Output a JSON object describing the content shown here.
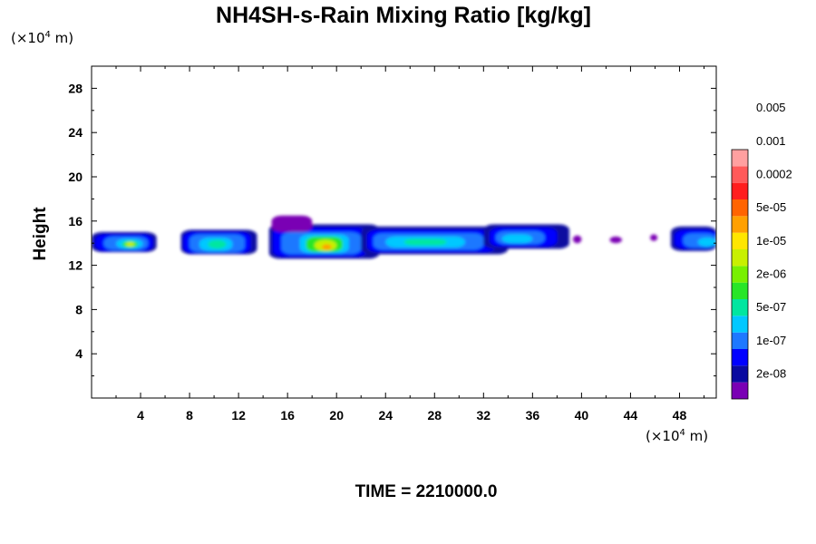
{
  "title": "NH4SH-s-Rain Mixing Ratio [kg/kg]",
  "time_label": "TIME = 2210000.0",
  "y_unit": {
    "prefix": "(×10",
    "exp": "4",
    "suffix": " m)"
  },
  "x_unit": {
    "prefix": "(×10",
    "exp": "4",
    "suffix": " m)"
  },
  "chart_data": {
    "type": "heatmap",
    "title": "NH4SH-s-Rain Mixing Ratio [kg/kg]",
    "xlabel": "",
    "ylabel": "Height",
    "x_unit": "×10^4 m",
    "y_unit": "×10^4 m",
    "xlim": [
      0,
      51
    ],
    "ylim": [
      0,
      30
    ],
    "x_ticks": [
      4,
      8,
      12,
      16,
      20,
      24,
      28,
      32,
      36,
      40,
      44,
      48
    ],
    "y_ticks": [
      4,
      8,
      12,
      16,
      20,
      24,
      28
    ],
    "grid": false,
    "colorbar": {
      "placement": "right",
      "levels": [
        "2e-08",
        "1e-07",
        "5e-07",
        "2e-06",
        "1e-05",
        "5e-05",
        "0.0002",
        "0.001",
        "0.005"
      ],
      "colors": [
        "#7a00b4",
        "#0a0aa0",
        "#0000ff",
        "#1e78ff",
        "#00c8ff",
        "#00e6a0",
        "#28e628",
        "#78f000",
        "#c8f000",
        "#ffe600",
        "#ffa000",
        "#ff6400",
        "#ff1e1e",
        "#ff5a5a",
        "#ffa0a0"
      ]
    },
    "cells": [
      {
        "x": [
          0,
          5.3
        ],
        "y": [
          13.2,
          15.0
        ],
        "level": 1
      },
      {
        "x": [
          0.3,
          5.0
        ],
        "y": [
          13.3,
          14.8
        ],
        "level": 2
      },
      {
        "x": [
          1.0,
          4.6
        ],
        "y": [
          13.4,
          14.6
        ],
        "level": 3
      },
      {
        "x": [
          2.0,
          4.2
        ],
        "y": [
          13.5,
          14.4
        ],
        "level": 4
      },
      {
        "x": [
          2.5,
          3.8
        ],
        "y": [
          13.6,
          14.2
        ],
        "level": 6
      },
      {
        "x": [
          2.8,
          3.5
        ],
        "y": [
          13.7,
          14.1
        ],
        "level": 8
      },
      {
        "x": [
          7.3,
          13.5
        ],
        "y": [
          13.0,
          15.2
        ],
        "level": 1
      },
      {
        "x": [
          7.5,
          13.0
        ],
        "y": [
          13.1,
          15.0
        ],
        "level": 2
      },
      {
        "x": [
          8.0,
          12.5
        ],
        "y": [
          13.2,
          14.8
        ],
        "level": 3
      },
      {
        "x": [
          8.8,
          11.5
        ],
        "y": [
          13.3,
          14.5
        ],
        "level": 4
      },
      {
        "x": [
          9.5,
          11.0
        ],
        "y": [
          13.5,
          14.3
        ],
        "level": 5
      },
      {
        "x": [
          14.5,
          23.5
        ],
        "y": [
          12.6,
          15.7
        ],
        "level": 1
      },
      {
        "x": [
          14.8,
          22.5
        ],
        "y": [
          12.8,
          15.4
        ],
        "level": 2
      },
      {
        "x": [
          15.5,
          22.0
        ],
        "y": [
          13.0,
          15.0
        ],
        "level": 3
      },
      {
        "x": [
          17.0,
          21.0
        ],
        "y": [
          13.1,
          14.8
        ],
        "level": 4
      },
      {
        "x": [
          17.5,
          20.5
        ],
        "y": [
          13.2,
          14.6
        ],
        "level": 6
      },
      {
        "x": [
          18.2,
          20.0
        ],
        "y": [
          13.3,
          14.3
        ],
        "level": 8
      },
      {
        "x": [
          18.8,
          19.6
        ],
        "y": [
          13.4,
          13.9
        ],
        "level": 10
      },
      {
        "x": [
          14.7,
          18.0
        ],
        "y": [
          15.0,
          16.5
        ],
        "level": 0
      },
      {
        "x": [
          22.0,
          34.0
        ],
        "y": [
          13.0,
          15.5
        ],
        "level": 1
      },
      {
        "x": [
          22.5,
          33.0
        ],
        "y": [
          13.2,
          15.2
        ],
        "level": 2
      },
      {
        "x": [
          23.0,
          32.0
        ],
        "y": [
          13.4,
          14.9
        ],
        "level": 3
      },
      {
        "x": [
          24.0,
          30.5
        ],
        "y": [
          13.6,
          14.6
        ],
        "level": 4
      },
      {
        "x": [
          25.5,
          29.0
        ],
        "y": [
          13.8,
          14.4
        ],
        "level": 5
      },
      {
        "x": [
          32.0,
          39.0
        ],
        "y": [
          13.5,
          15.7
        ],
        "level": 1
      },
      {
        "x": [
          32.5,
          38.0
        ],
        "y": [
          13.7,
          15.4
        ],
        "level": 2
      },
      {
        "x": [
          33.0,
          37.0
        ],
        "y": [
          13.9,
          15.1
        ],
        "level": 3
      },
      {
        "x": [
          33.5,
          36.0
        ],
        "y": [
          14.0,
          14.8
        ],
        "level": 4
      },
      {
        "x": [
          39.3,
          40.0
        ],
        "y": [
          14.0,
          14.7
        ],
        "level": 0
      },
      {
        "x": [
          42.3,
          43.3
        ],
        "y": [
          14.0,
          14.6
        ],
        "level": 0
      },
      {
        "x": [
          45.6,
          46.2
        ],
        "y": [
          14.2,
          14.8
        ],
        "level": 0
      },
      {
        "x": [
          47.3,
          51.0
        ],
        "y": [
          13.3,
          15.5
        ],
        "level": 1
      },
      {
        "x": [
          47.6,
          51.0
        ],
        "y": [
          13.5,
          15.2
        ],
        "level": 2
      },
      {
        "x": [
          48.3,
          51.0
        ],
        "y": [
          13.6,
          14.9
        ],
        "level": 3
      },
      {
        "x": [
          49.5,
          51.0
        ],
        "y": [
          13.7,
          14.5
        ],
        "level": 4
      }
    ]
  }
}
